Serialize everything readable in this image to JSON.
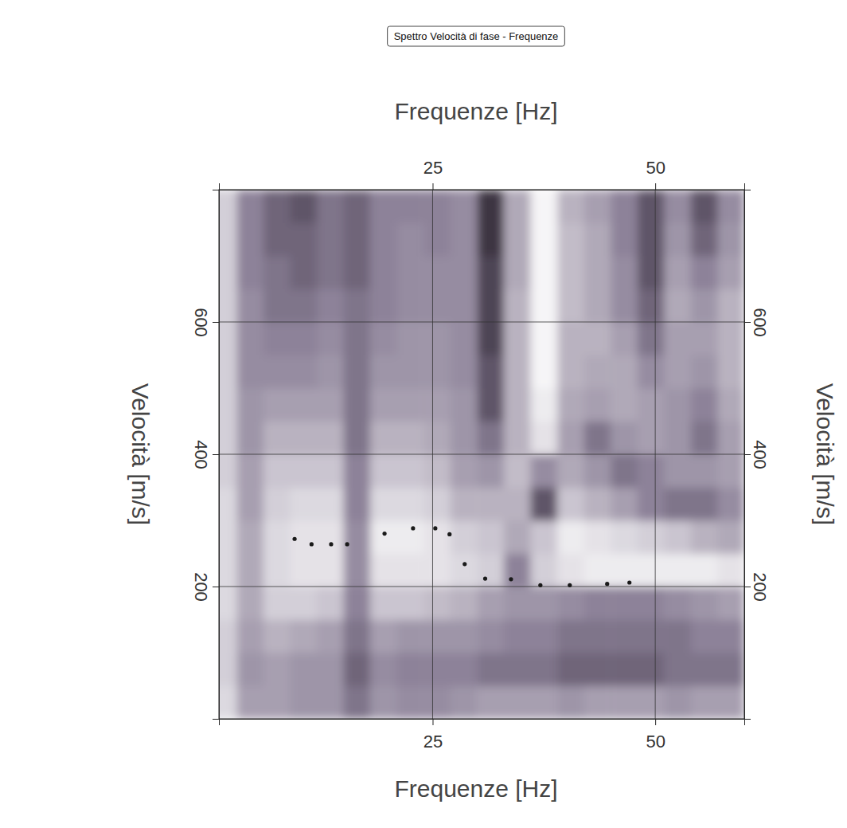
{
  "chart_data": {
    "type": "scatter",
    "title": "Spettro Velocità di fase - Frequenze",
    "x_label": "Frequenze [Hz]",
    "y_label": "Velocità [m/s]",
    "xlim": [
      1,
      60
    ],
    "ylim": [
      0,
      800
    ],
    "xticks": [
      25,
      50
    ],
    "yticks": [
      200,
      400,
      600
    ],
    "grid": true,
    "marker": "circle",
    "color": "#1a1a1a",
    "x": [
      9.5,
      11.4,
      13.6,
      15.4,
      19.6,
      22.8,
      25.3,
      26.9,
      28.6,
      30.9,
      33.8,
      37.1,
      40.4,
      44.6,
      47.1
    ],
    "values": [
      272,
      264,
      264,
      264,
      280,
      288,
      288,
      279,
      234,
      212,
      211,
      202,
      202,
      204,
      206
    ],
    "heatmap": {
      "x_bins": [
        0,
        3,
        6,
        9,
        12,
        15,
        18,
        21,
        24,
        27,
        30,
        33,
        36,
        39,
        42,
        45,
        48,
        51,
        54,
        57,
        60
      ],
      "y_bins": [
        0,
        50,
        100,
        150,
        200,
        250,
        300,
        350,
        400,
        450,
        500,
        550,
        600,
        650,
        700,
        750,
        800
      ],
      "zlim": [
        0,
        1
      ],
      "z": [
        [
          0.8,
          0.5,
          0.5,
          0.45,
          0.45,
          0.3,
          0.45,
          0.4,
          0.4,
          0.45,
          0.5,
          0.5,
          0.5,
          0.45,
          0.5,
          0.5,
          0.5,
          0.45,
          0.5,
          0.5
        ],
        [
          0.75,
          0.45,
          0.5,
          0.45,
          0.45,
          0.25,
          0.4,
          0.35,
          0.35,
          0.35,
          0.3,
          0.3,
          0.3,
          0.25,
          0.25,
          0.25,
          0.25,
          0.3,
          0.3,
          0.3
        ],
        [
          0.75,
          0.5,
          0.6,
          0.55,
          0.5,
          0.3,
          0.5,
          0.45,
          0.45,
          0.45,
          0.4,
          0.35,
          0.35,
          0.3,
          0.3,
          0.3,
          0.3,
          0.3,
          0.35,
          0.35
        ],
        [
          0.8,
          0.55,
          0.75,
          0.75,
          0.7,
          0.35,
          0.7,
          0.7,
          0.65,
          0.6,
          0.5,
          0.45,
          0.45,
          0.4,
          0.35,
          0.35,
          0.35,
          0.4,
          0.45,
          0.5
        ],
        [
          0.8,
          0.55,
          0.8,
          0.85,
          0.85,
          0.4,
          0.85,
          0.85,
          0.85,
          0.8,
          0.75,
          0.35,
          0.75,
          0.85,
          0.9,
          0.9,
          0.9,
          0.9,
          0.9,
          0.85
        ],
        [
          0.8,
          0.55,
          0.8,
          0.85,
          0.85,
          0.4,
          0.9,
          0.9,
          0.85,
          0.75,
          0.7,
          0.55,
          0.7,
          0.9,
          0.85,
          0.8,
          0.75,
          0.7,
          0.6,
          0.55
        ],
        [
          0.8,
          0.5,
          0.75,
          0.8,
          0.8,
          0.35,
          0.8,
          0.8,
          0.75,
          0.6,
          0.6,
          0.6,
          0.2,
          0.7,
          0.6,
          0.5,
          0.35,
          0.3,
          0.3,
          0.4
        ],
        [
          0.75,
          0.5,
          0.7,
          0.7,
          0.7,
          0.35,
          0.7,
          0.7,
          0.65,
          0.5,
          0.45,
          0.65,
          0.4,
          0.55,
          0.45,
          0.3,
          0.35,
          0.45,
          0.45,
          0.5
        ],
        [
          0.75,
          0.45,
          0.6,
          0.6,
          0.6,
          0.3,
          0.6,
          0.6,
          0.55,
          0.45,
          0.3,
          0.6,
          0.85,
          0.5,
          0.3,
          0.45,
          0.5,
          0.45,
          0.3,
          0.5
        ],
        [
          0.75,
          0.45,
          0.5,
          0.5,
          0.5,
          0.3,
          0.5,
          0.5,
          0.5,
          0.45,
          0.2,
          0.6,
          0.9,
          0.55,
          0.5,
          0.55,
          0.5,
          0.45,
          0.35,
          0.55
        ],
        [
          0.75,
          0.4,
          0.4,
          0.4,
          0.45,
          0.3,
          0.45,
          0.45,
          0.45,
          0.4,
          0.2,
          0.6,
          0.95,
          0.6,
          0.55,
          0.55,
          0.4,
          0.5,
          0.45,
          0.6
        ],
        [
          0.75,
          0.4,
          0.35,
          0.35,
          0.4,
          0.3,
          0.4,
          0.45,
          0.45,
          0.4,
          0.15,
          0.6,
          0.95,
          0.6,
          0.6,
          0.5,
          0.3,
          0.5,
          0.5,
          0.6
        ],
        [
          0.75,
          0.4,
          0.3,
          0.3,
          0.35,
          0.3,
          0.35,
          0.4,
          0.4,
          0.4,
          0.15,
          0.6,
          0.95,
          0.65,
          0.55,
          0.4,
          0.25,
          0.55,
          0.45,
          0.6
        ],
        [
          0.75,
          0.35,
          0.3,
          0.25,
          0.3,
          0.25,
          0.35,
          0.4,
          0.4,
          0.4,
          0.15,
          0.55,
          0.95,
          0.65,
          0.55,
          0.4,
          0.2,
          0.5,
          0.35,
          0.5
        ],
        [
          0.75,
          0.35,
          0.25,
          0.25,
          0.3,
          0.25,
          0.35,
          0.4,
          0.35,
          0.4,
          0.1,
          0.55,
          0.95,
          0.65,
          0.55,
          0.35,
          0.2,
          0.45,
          0.25,
          0.45
        ],
        [
          0.75,
          0.35,
          0.25,
          0.2,
          0.3,
          0.25,
          0.35,
          0.35,
          0.35,
          0.4,
          0.1,
          0.55,
          0.95,
          0.6,
          0.5,
          0.35,
          0.2,
          0.4,
          0.2,
          0.4
        ]
      ]
    }
  }
}
